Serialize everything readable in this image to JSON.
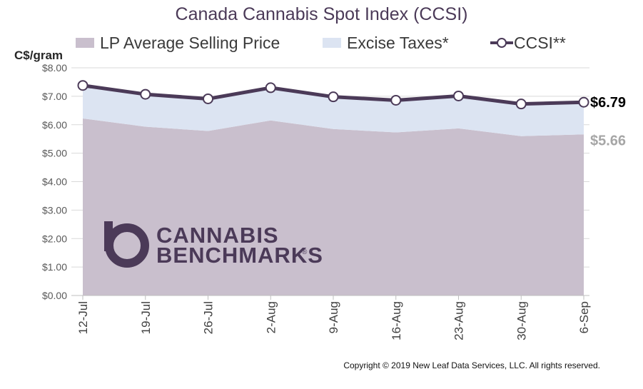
{
  "chart_data": {
    "type": "area",
    "title": "Canada Cannabis Spot Index (CCSI)",
    "ylabel": "C$/gram",
    "xlabel": "",
    "ylim": [
      0,
      8
    ],
    "yticks": [
      "$0.00",
      "$1.00",
      "$2.00",
      "$3.00",
      "$4.00",
      "$5.00",
      "$6.00",
      "$7.00",
      "$8.00"
    ],
    "categories": [
      "12-Jul",
      "19-Jul",
      "26-Jul",
      "2-Aug",
      "9-Aug",
      "16-Aug",
      "23-Aug",
      "30-Aug",
      "6-Sep"
    ],
    "grid": true,
    "legend_position": "top",
    "series": [
      {
        "name": "LP Average Selling Price",
        "type": "area",
        "color": "#c9bfcd",
        "values": [
          6.22,
          5.93,
          5.78,
          6.15,
          5.85,
          5.73,
          5.87,
          5.6,
          5.66
        ]
      },
      {
        "name": "Excise Taxes*",
        "type": "area",
        "color": "#dce4f2",
        "values": [
          1.16,
          1.14,
          1.13,
          1.15,
          1.13,
          1.13,
          1.14,
          1.13,
          1.13
        ]
      },
      {
        "name": "CCSI**",
        "type": "line",
        "color": "#4b3a58",
        "values": [
          7.38,
          7.07,
          6.91,
          7.3,
          6.98,
          6.86,
          7.01,
          6.73,
          6.79
        ]
      }
    ],
    "end_labels": [
      {
        "series": "CCSI**",
        "text": "$6.79",
        "color": "#000000"
      },
      {
        "series": "LP Average Selling Price",
        "text": "$5.66",
        "color": "#a6a6a6"
      }
    ]
  },
  "logo": {
    "line1": "CANNABIS",
    "line2": "BENCHMARKS",
    "mark": "®"
  },
  "copyright": "Copyright © 2019 New Leaf Data Services, LLC. All rights reserved."
}
